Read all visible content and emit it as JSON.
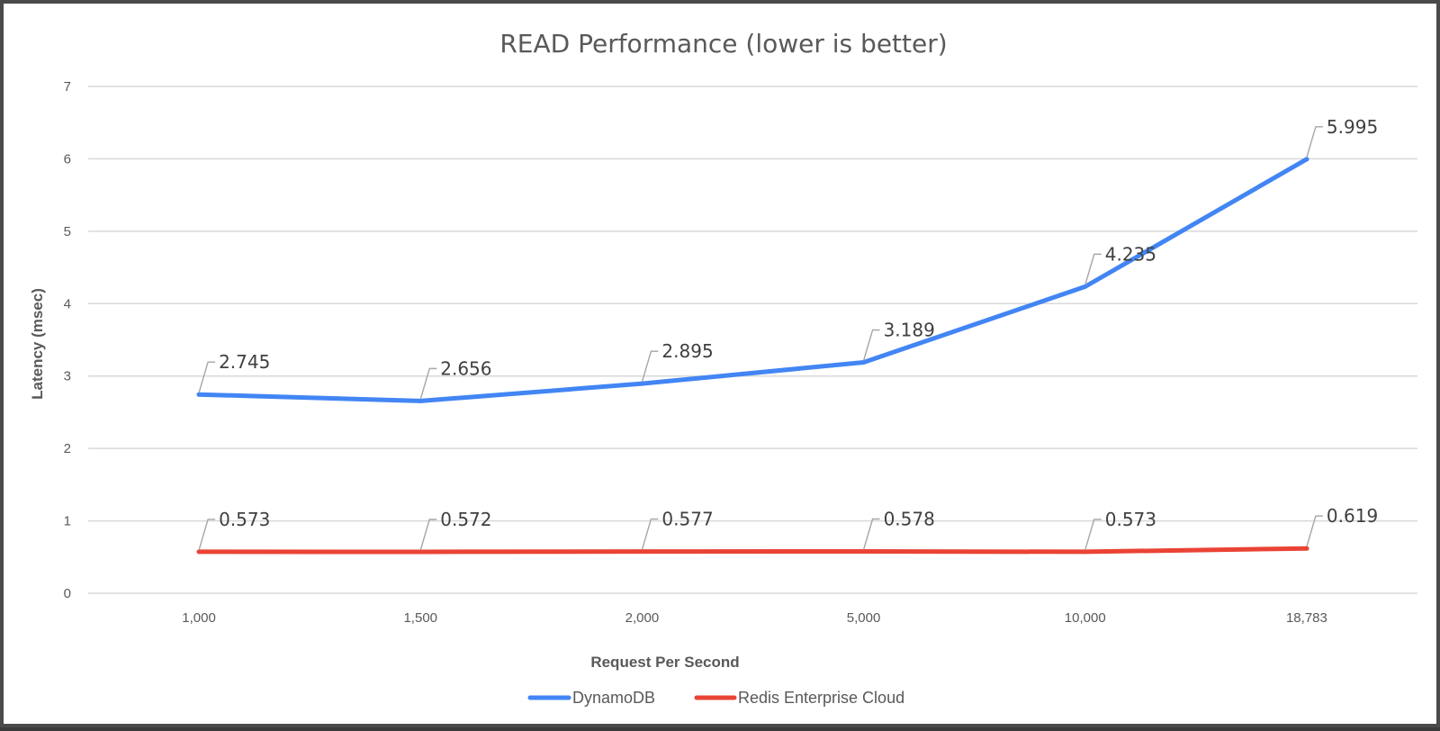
{
  "chart_data": {
    "type": "line",
    "title": "READ Performance (lower is better)",
    "xlabel": "Request Per Second",
    "ylabel": "Latency (msec)",
    "categories": [
      "1,000",
      "1,500",
      "2,000",
      "5,000",
      "10,000",
      "18,783"
    ],
    "ylim": [
      0,
      7
    ],
    "yticks": [
      0,
      1,
      2,
      3,
      4,
      5,
      6,
      7
    ],
    "grid": "horizontal",
    "legend_position": "bottom",
    "series": [
      {
        "name": "DynamoDB",
        "color": "#4285f4",
        "values": [
          2.745,
          2.656,
          2.895,
          3.189,
          4.235,
          5.995
        ],
        "labels": [
          "2.745",
          "2.656",
          "2.895",
          "3.189",
          "4.235",
          "5.995"
        ]
      },
      {
        "name": "Redis Enterprise Cloud",
        "color": "#ea4335",
        "values": [
          0.573,
          0.572,
          0.577,
          0.578,
          0.573,
          0.619
        ],
        "labels": [
          "0.573",
          "0.572",
          "0.577",
          "0.578",
          "0.573",
          "0.619"
        ]
      }
    ]
  }
}
